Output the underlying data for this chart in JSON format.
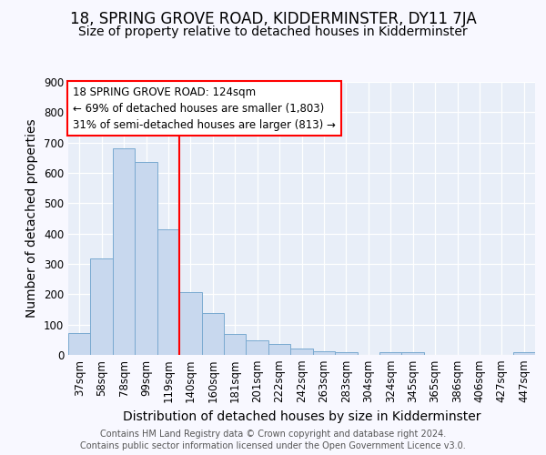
{
  "title": "18, SPRING GROVE ROAD, KIDDERMINSTER, DY11 7JA",
  "subtitle": "Size of property relative to detached houses in Kidderminster",
  "xlabel": "Distribution of detached houses by size in Kidderminster",
  "ylabel": "Number of detached properties",
  "categories": [
    "37sqm",
    "58sqm",
    "78sqm",
    "99sqm",
    "119sqm",
    "140sqm",
    "160sqm",
    "181sqm",
    "201sqm",
    "222sqm",
    "242sqm",
    "263sqm",
    "283sqm",
    "304sqm",
    "324sqm",
    "345sqm",
    "365sqm",
    "386sqm",
    "406sqm",
    "427sqm",
    "447sqm"
  ],
  "values": [
    72,
    318,
    680,
    635,
    415,
    208,
    137,
    68,
    48,
    35,
    20,
    12,
    10,
    0,
    8,
    8,
    0,
    0,
    0,
    0,
    9
  ],
  "bar_color": "#c8d8ee",
  "bar_edge_color": "#7aaad0",
  "annotation_line1": "18 SPRING GROVE ROAD: 124sqm",
  "annotation_line2": "← 69% of detached houses are smaller (1,803)",
  "annotation_line3": "31% of semi-detached houses are larger (813) →",
  "ylim": [
    0,
    900
  ],
  "yticks": [
    0,
    100,
    200,
    300,
    400,
    500,
    600,
    700,
    800,
    900
  ],
  "footer_line1": "Contains HM Land Registry data © Crown copyright and database right 2024.",
  "footer_line2": "Contains public sector information licensed under the Open Government Licence v3.0.",
  "fig_background": "#f8f8ff",
  "plot_background": "#e8eef8",
  "grid_color": "#ffffff",
  "title_fontsize": 12,
  "subtitle_fontsize": 10,
  "axis_label_fontsize": 10,
  "tick_fontsize": 8.5,
  "footer_fontsize": 7
}
